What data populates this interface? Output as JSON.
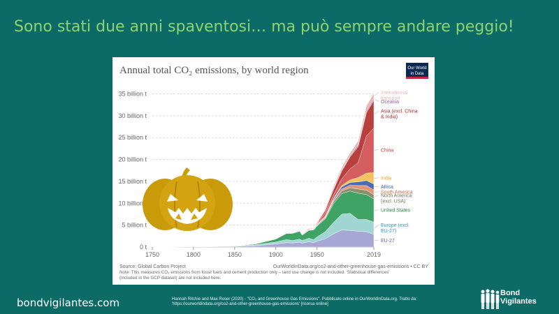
{
  "slide": {
    "title": "Sono stati due anni spaventosi… ma può sempre andare peggio!",
    "footer_site": "bondvigilantes.com",
    "citation_line1": "Hannah Ritchie and Max Roser (2020) - \"CO₂ and Greenhouse Gas Emissions\". Pubblicato online in OurWorldInData.org. Tratto da:",
    "citation_line2": "'https://ourworldindata.org/co2-and-other-greenhouse-gas-emissions' [risorsa online]",
    "brand_line1": "Bond",
    "brand_line2": "Vigilantes",
    "pumpkin_icon": "jack-o-lantern-icon",
    "background_color": "#0d6b67",
    "title_color": "#8fd36e"
  },
  "chart_data": {
    "type": "area",
    "title": "Annual total CO₂ emissions, by world region",
    "logo_line1": "Our World",
    "logo_line2": "in Data",
    "x": [
      1750,
      1800,
      1850,
      1875,
      1900,
      1913,
      1920,
      1929,
      1932,
      1940,
      1946,
      1950,
      1960,
      1970,
      1980,
      1990,
      2000,
      2010,
      2019
    ],
    "series": [
      {
        "name": "EU-27",
        "color": "#a7a6d4",
        "values": [
          0.01,
          0.03,
          0.15,
          0.3,
          0.7,
          1.0,
          0.9,
          1.1,
          0.9,
          1.2,
          1.0,
          1.3,
          1.9,
          3.0,
          3.9,
          3.8,
          3.6,
          3.5,
          2.9
        ]
      },
      {
        "name": "Europe (excl. EU-27)",
        "color": "#9fd6d2",
        "values": [
          0.0,
          0.02,
          0.1,
          0.2,
          0.45,
          0.7,
          0.6,
          0.7,
          0.6,
          0.8,
          0.7,
          1.0,
          1.6,
          2.6,
          3.6,
          3.9,
          2.7,
          2.8,
          2.8
        ]
      },
      {
        "name": "United States",
        "color": "#3fa365",
        "values": [
          0.0,
          0.0,
          0.05,
          0.2,
          0.66,
          1.4,
          1.6,
          1.8,
          1.2,
          1.8,
          2.2,
          2.5,
          2.9,
          4.3,
          4.7,
          5.1,
          6.0,
          5.7,
          5.3
        ]
      },
      {
        "name": "North America (excl. USA)",
        "color": "#8a8f6b",
        "values": [
          0,
          0,
          0,
          0.01,
          0.03,
          0.06,
          0.07,
          0.08,
          0.07,
          0.08,
          0.1,
          0.12,
          0.25,
          0.45,
          0.6,
          0.75,
          0.95,
          1.0,
          0.95
        ]
      },
      {
        "name": "South America",
        "color": "#e39372",
        "values": [
          0,
          0,
          0,
          0.0,
          0.01,
          0.02,
          0.03,
          0.04,
          0.04,
          0.05,
          0.06,
          0.08,
          0.15,
          0.25,
          0.45,
          0.55,
          0.8,
          1.05,
          1.1
        ]
      },
      {
        "name": "Africa",
        "color": "#4c6bb7",
        "values": [
          0,
          0,
          0,
          0.0,
          0.01,
          0.02,
          0.02,
          0.03,
          0.03,
          0.04,
          0.05,
          0.1,
          0.15,
          0.3,
          0.5,
          0.65,
          0.85,
          1.15,
          1.35
        ]
      },
      {
        "name": "India",
        "color": "#f3c45e",
        "values": [
          0,
          0,
          0,
          0.0,
          0.01,
          0.03,
          0.04,
          0.05,
          0.05,
          0.05,
          0.07,
          0.07,
          0.12,
          0.2,
          0.3,
          0.58,
          0.97,
          1.68,
          2.6
        ]
      },
      {
        "name": "China",
        "color": "#d45e5f",
        "values": [
          0,
          0,
          0,
          0.0,
          0.0,
          0.01,
          0.01,
          0.02,
          0.02,
          0.03,
          0.04,
          0.08,
          0.8,
          0.8,
          1.5,
          2.5,
          3.4,
          8.5,
          10.2
        ]
      },
      {
        "name": "Asia (excl. China & India)",
        "color": "#b8413e",
        "values": [
          0,
          0,
          0,
          0.0,
          0.02,
          0.05,
          0.06,
          0.08,
          0.08,
          0.12,
          0.08,
          0.2,
          0.5,
          1.2,
          1.8,
          2.7,
          3.7,
          5.3,
          6.3
        ]
      },
      {
        "name": "Oceania",
        "color": "#b08bb0",
        "values": [
          0,
          0,
          0,
          0.0,
          0.01,
          0.02,
          0.02,
          0.02,
          0.02,
          0.03,
          0.03,
          0.04,
          0.07,
          0.13,
          0.2,
          0.3,
          0.38,
          0.45,
          0.45
        ]
      },
      {
        "name": "International transport",
        "color": "#e7b8b2",
        "values": [
          0,
          0,
          0,
          0.0,
          0.0,
          0.05,
          0.05,
          0.05,
          0.05,
          0.08,
          0.1,
          0.15,
          0.25,
          0.5,
          0.6,
          0.65,
          0.9,
          1.1,
          1.25
        ]
      }
    ],
    "legend_labels": [
      {
        "lines": [
          "International",
          "transport"
        ],
        "color": "#e7b8b2",
        "series": 10
      },
      {
        "lines": [
          "Oceania"
        ],
        "color": "#8b5f95",
        "series": 9
      },
      {
        "lines": [
          "Asia (excl. China",
          "& India)"
        ],
        "color": "#a2322f",
        "series": 8
      },
      {
        "lines": [
          "China"
        ],
        "color": "#c0403f",
        "series": 7
      },
      {
        "lines": [
          "India"
        ],
        "color": "#e3a516",
        "series": 6
      },
      {
        "lines": [
          "Africa"
        ],
        "color": "#3c5ca6",
        "series": 5
      },
      {
        "lines": [
          "South America"
        ],
        "color": "#d06d4a",
        "series": 4
      },
      {
        "lines": [
          "North America",
          "(excl. USA)"
        ],
        "color": "#6f7354",
        "series": 3
      },
      {
        "lines": [
          "United States"
        ],
        "color": "#268047",
        "series": 2
      },
      {
        "lines": [
          "Europe (excl.",
          "EU-27)"
        ],
        "color": "#3d8fb8",
        "series": 1
      },
      {
        "lines": [
          "EU-27"
        ],
        "color": "#5f5ea8",
        "series": 0
      }
    ],
    "ylim": [
      0,
      37
    ],
    "xlim": [
      1750,
      2019
    ],
    "yticks": [
      0,
      5,
      10,
      15,
      20,
      25,
      30,
      35
    ],
    "ytick_labels": [
      "0 t",
      "5 billion t",
      "10 billion t",
      "15 billion t",
      "20 billion t",
      "25 billion t",
      "30 billion t",
      "35 billion t"
    ],
    "xticks": [
      1750,
      1800,
      1850,
      1900,
      1950,
      2019
    ],
    "xtick_labels": [
      "1750",
      "1800",
      "1850",
      "1900",
      "1950",
      "2019"
    ],
    "grid": true,
    "source": "Source: Global Carbon Project",
    "url_license": "OurWorldInData.org/co2-and-other-greenhouse-gas-emissions • CC BY",
    "note_line1": "Note: This measures CO₂ emissions from fossil fuels and cement production only – land use change is not included. 'Statistical differences'",
    "note_line2": "(included in the GCP dataset) are not included here."
  }
}
